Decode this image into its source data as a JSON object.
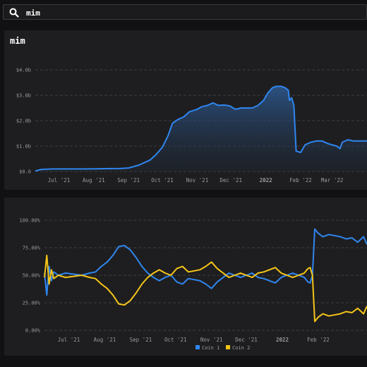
{
  "search": {
    "value": "mim",
    "icon": "search-icon"
  },
  "colors": {
    "coin1": "#2f86f0",
    "coin2": "#f5c518",
    "background": "#111113",
    "panel": "#1e1e20",
    "grid": "#4a4a4e",
    "tick": "#9a9a9a"
  },
  "panel1": {
    "title": "mim"
  },
  "panel2": {
    "title": ""
  },
  "chart_data": [
    {
      "type": "area",
      "title": "mim",
      "xlabel": "",
      "ylabel": "",
      "x_ticks": [
        "Jul '21",
        "Aug '21",
        "Sep '21",
        "Oct '21",
        "Nov '21",
        "Dec '21",
        "2022",
        "Feb '22",
        "Mar '22"
      ],
      "y_ticks": [
        "$0.0",
        "$1.0b",
        "$2.0b",
        "$3.0b",
        "$4.0b"
      ],
      "ylim": [
        0,
        4.0
      ],
      "x_range": [
        "2021-06-10",
        "2022-04-01"
      ],
      "grid": true,
      "series": [
        {
          "x": [
            "2021-06-10",
            "2021-06-15",
            "2021-06-25",
            "2021-07-10",
            "2021-07-25",
            "2021-08-10",
            "2021-08-25",
            "2021-09-01",
            "2021-09-10",
            "2021-09-20",
            "2021-09-25",
            "2021-10-01",
            "2021-10-06",
            "2021-10-10",
            "2021-10-15",
            "2021-10-20",
            "2021-10-25",
            "2021-11-01",
            "2021-11-05",
            "2021-11-10",
            "2021-11-15",
            "2021-11-20",
            "2021-11-25",
            "2021-11-30",
            "2021-12-05",
            "2021-12-10",
            "2021-12-15",
            "2021-12-20",
            "2021-12-25",
            "2021-12-30",
            "2022-01-03",
            "2022-01-07",
            "2022-01-10",
            "2022-01-15",
            "2022-01-18",
            "2022-01-21",
            "2022-01-22",
            "2022-01-24",
            "2022-01-26",
            "2022-01-28",
            "2022-02-01",
            "2022-02-05",
            "2022-02-10",
            "2022-02-15",
            "2022-02-20",
            "2022-02-25",
            "2022-03-01",
            "2022-03-05",
            "2022-03-08",
            "2022-03-10",
            "2022-03-15",
            "2022-03-20",
            "2022-03-25",
            "2022-04-01"
          ],
          "values": [
            0.02,
            0.08,
            0.1,
            0.1,
            0.1,
            0.11,
            0.12,
            0.14,
            0.25,
            0.45,
            0.65,
            0.95,
            1.4,
            1.9,
            2.05,
            2.15,
            2.35,
            2.45,
            2.55,
            2.6,
            2.7,
            2.6,
            2.62,
            2.58,
            2.45,
            2.5,
            2.5,
            2.5,
            2.6,
            2.8,
            3.1,
            3.3,
            3.35,
            3.35,
            3.3,
            3.2,
            2.8,
            2.9,
            2.6,
            0.8,
            0.75,
            1.05,
            1.15,
            1.2,
            1.2,
            1.1,
            1.05,
            1.0,
            0.9,
            1.15,
            1.25,
            1.2,
            1.2,
            1.2
          ]
        }
      ]
    },
    {
      "type": "line",
      "title": "",
      "xlabel": "",
      "ylabel": "",
      "x_ticks": [
        "Jul '21",
        "Aug '21",
        "Sep '21",
        "Oct '21",
        "Nov '21",
        "Dec '21",
        "2022",
        "Feb '22"
      ],
      "y_ticks": [
        "0.00%",
        "25.00%",
        "50.00%",
        "75.00%",
        "100.00%"
      ],
      "ylim": [
        0,
        100
      ],
      "x_range": [
        "2021-06-10",
        "2022-03-15"
      ],
      "grid": true,
      "legend": "bottom",
      "series": [
        {
          "name": "Coin 1",
          "x": [
            "2021-06-10",
            "2021-06-12",
            "2021-06-14",
            "2021-06-16",
            "2021-06-18",
            "2021-06-22",
            "2021-06-28",
            "2021-07-05",
            "2021-07-12",
            "2021-07-19",
            "2021-07-24",
            "2021-07-29",
            "2021-08-03",
            "2021-08-08",
            "2021-08-13",
            "2021-08-18",
            "2021-08-23",
            "2021-08-28",
            "2021-09-02",
            "2021-09-07",
            "2021-09-12",
            "2021-09-17",
            "2021-09-22",
            "2021-09-27",
            "2021-10-02",
            "2021-10-07",
            "2021-10-12",
            "2021-10-17",
            "2021-10-22",
            "2021-10-27",
            "2021-11-01",
            "2021-11-06",
            "2021-11-11",
            "2021-11-16",
            "2021-11-21",
            "2021-11-26",
            "2021-12-01",
            "2021-12-06",
            "2021-12-11",
            "2021-12-16",
            "2021-12-21",
            "2021-12-26",
            "2021-12-31",
            "2022-01-05",
            "2022-01-10",
            "2022-01-15",
            "2022-01-20",
            "2022-01-23",
            "2022-01-25",
            "2022-01-27",
            "2022-01-29",
            "2022-02-01",
            "2022-02-05",
            "2022-02-10",
            "2022-02-15",
            "2022-02-20",
            "2022-02-25",
            "2022-03-02",
            "2022-03-07",
            "2022-03-12",
            "2022-03-15"
          ],
          "values": [
            52,
            32,
            58,
            45,
            53,
            50,
            52,
            51,
            50,
            52,
            53,
            58,
            62,
            68,
            76,
            77,
            73,
            66,
            58,
            52,
            48,
            45,
            48,
            50,
            44,
            42,
            47,
            46,
            45,
            42,
            38,
            44,
            48,
            52,
            50,
            48,
            50,
            52,
            48,
            47,
            45,
            43,
            48,
            50,
            52,
            50,
            48,
            44,
            43,
            50,
            92,
            88,
            85,
            87,
            86,
            85,
            83,
            84,
            80,
            85,
            78
          ]
        },
        {
          "name": "Coin 2",
          "x": [
            "2021-06-10",
            "2021-06-12",
            "2021-06-14",
            "2021-06-16",
            "2021-06-18",
            "2021-06-22",
            "2021-06-28",
            "2021-07-05",
            "2021-07-12",
            "2021-07-19",
            "2021-07-24",
            "2021-07-29",
            "2021-08-03",
            "2021-08-08",
            "2021-08-13",
            "2021-08-18",
            "2021-08-23",
            "2021-08-28",
            "2021-09-02",
            "2021-09-07",
            "2021-09-12",
            "2021-09-17",
            "2021-09-22",
            "2021-09-27",
            "2021-10-02",
            "2021-10-07",
            "2021-10-12",
            "2021-10-17",
            "2021-10-22",
            "2021-10-27",
            "2021-11-01",
            "2021-11-06",
            "2021-11-11",
            "2021-11-16",
            "2021-11-21",
            "2021-11-26",
            "2021-12-01",
            "2021-12-06",
            "2021-12-11",
            "2021-12-16",
            "2021-12-21",
            "2021-12-26",
            "2021-12-31",
            "2022-01-05",
            "2022-01-10",
            "2022-01-15",
            "2022-01-20",
            "2022-01-23",
            "2022-01-25",
            "2022-01-27",
            "2022-01-29",
            "2022-02-01",
            "2022-02-05",
            "2022-02-10",
            "2022-02-15",
            "2022-02-20",
            "2022-02-25",
            "2022-03-02",
            "2022-03-07",
            "2022-03-12",
            "2022-03-15"
          ],
          "values": [
            48,
            68,
            42,
            55,
            47,
            50,
            48,
            49,
            50,
            48,
            47,
            42,
            38,
            32,
            24,
            23,
            27,
            34,
            42,
            48,
            52,
            55,
            52,
            50,
            56,
            58,
            53,
            54,
            55,
            58,
            62,
            56,
            52,
            48,
            50,
            52,
            50,
            48,
            52,
            53,
            55,
            57,
            52,
            50,
            48,
            50,
            52,
            56,
            57,
            50,
            8,
            12,
            15,
            13,
            14,
            15,
            17,
            16,
            20,
            15,
            22
          ]
        }
      ]
    }
  ]
}
